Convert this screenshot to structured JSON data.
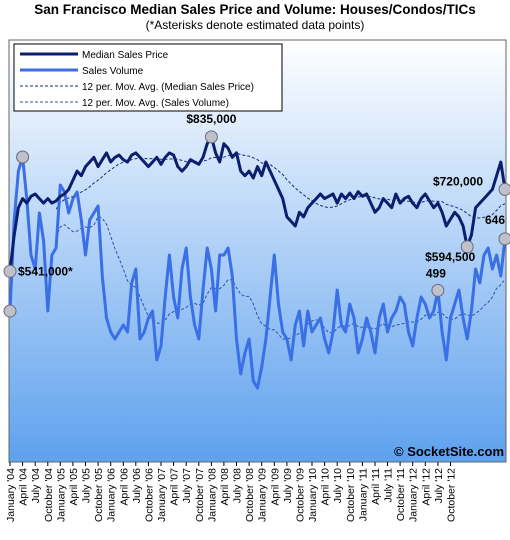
{
  "chart_data": {
    "type": "line",
    "title": "San Francisco Median Sales Price and Volume: Houses/Condos/TICs",
    "subtitle": "(*Asterisks denote estimated data points)",
    "credit": "© SocketSite.com",
    "grid": false,
    "legend_position": "top-left",
    "legend": [
      {
        "label": "Median Sales Price",
        "style": "solid-dark"
      },
      {
        "label": "Sales Volume",
        "style": "solid-light"
      },
      {
        "label": "12 per. Mov. Avg. (Median Sales Price)",
        "style": "dashed-dark"
      },
      {
        "label": "12 per. Mov. Avg. (Sales Volume)",
        "style": "dashed-light"
      }
    ],
    "x_tick_labels": [
      "January '04",
      "April '04",
      "July '04",
      "October '04",
      "January '05",
      "April '05",
      "July '05",
      "October '05",
      "January '06",
      "April '06",
      "July '06",
      "October '06",
      "January '07",
      "April '07",
      "July '07",
      "October '07",
      "January '08",
      "April '08",
      "July '08",
      "October '08",
      "January '09",
      "April '09",
      "July '09",
      "October '09",
      "January '10",
      "April '10",
      "July '10",
      "October '10",
      "January '11",
      "April '11",
      "July '11",
      "October '11",
      "January '12",
      "April '12",
      "July '12",
      "October '12"
    ],
    "annotations": [
      "$835,000",
      "$541,000*",
      "$720,000",
      "$594,500",
      "499",
      "646"
    ],
    "colors": {
      "price": "#0b1f6e",
      "volume": "#3a6fe6",
      "price_ma": "#1a2a7a",
      "volume_ma": "#2c4fb0",
      "marker_fill": "#c0c0c8",
      "marker_stroke": "#6a6a80"
    },
    "series": [
      {
        "name": "Median Sales Price",
        "values": [
          541000,
          620000,
          680000,
          700000,
          690000,
          705000,
          710000,
          700000,
          690000,
          700000,
          690000,
          695000,
          705000,
          710000,
          720000,
          740000,
          760000,
          750000,
          770000,
          780000,
          790000,
          770000,
          785000,
          800000,
          780000,
          790000,
          795000,
          785000,
          780000,
          795000,
          800000,
          790000,
          780000,
          770000,
          780000,
          790000,
          775000,
          790000,
          800000,
          795000,
          770000,
          760000,
          770000,
          785000,
          780000,
          775000,
          790000,
          820000,
          835000,
          800000,
          780000,
          820000,
          810000,
          790000,
          800000,
          760000,
          750000,
          760000,
          745000,
          770000,
          750000,
          780000,
          760000,
          740000,
          720000,
          700000,
          660000,
          650000,
          640000,
          670000,
          660000,
          680000,
          690000,
          700000,
          710000,
          700000,
          705000,
          710000,
          690000,
          710000,
          700000,
          712000,
          700000,
          715000,
          705000,
          710000,
          690000,
          670000,
          680000,
          700000,
          690000,
          680000,
          710000,
          690000,
          700000,
          705000,
          690000,
          680000,
          700000,
          710000,
          695000,
          680000,
          690000,
          670000,
          640000,
          655000,
          670000,
          660000,
          640000,
          594500,
          620000,
          680000,
          690000,
          700000,
          710000,
          720000,
          750000,
          780000,
          720000
        ]
      },
      {
        "name": "Sales Volume",
        "values": [
          440,
          700,
          840,
          880,
          760,
          600,
          560,
          720,
          640,
          440,
          600,
          620,
          800,
          780,
          720,
          760,
          780,
          700,
          600,
          700,
          720,
          740,
          540,
          420,
          380,
          360,
          380,
          400,
          380,
          520,
          560,
          360,
          380,
          420,
          440,
          300,
          340,
          480,
          600,
          480,
          420,
          560,
          620,
          480,
          400,
          360,
          500,
          620,
          560,
          440,
          600,
          600,
          620,
          540,
          360,
          260,
          320,
          360,
          240,
          220,
          280,
          360,
          480,
          600,
          460,
          380,
          360,
          300,
          400,
          440,
          340,
          440,
          380,
          400,
          420,
          360,
          320,
          380,
          500,
          400,
          380,
          460,
          420,
          320,
          360,
          420,
          380,
          320,
          420,
          460,
          380,
          420,
          440,
          480,
          460,
          380,
          340,
          420,
          480,
          460,
          420,
          440,
          499,
          380,
          300,
          420,
          460,
          500,
          420,
          360,
          440,
          560,
          520,
          600,
          620,
          560,
          600,
          540,
          646
        ]
      }
    ],
    "y_units": {
      "price": "USD",
      "volume": "homes sold"
    }
  }
}
